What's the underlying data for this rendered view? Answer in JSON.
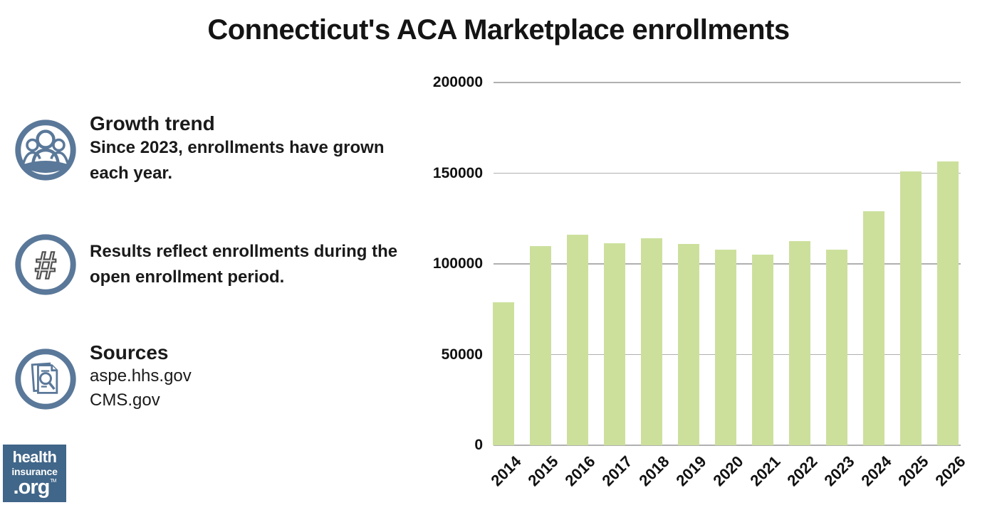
{
  "title": "Connecticut's ACA Marketplace enrollments",
  "sections": [
    {
      "icon": "people-icon",
      "heading": "Growth trend",
      "line1": "Since 2023, enrollments have grown",
      "line2": "each year."
    },
    {
      "icon": "hash-icon",
      "heading": "",
      "line1": "Results reflect enrollments during the",
      "line2": "open enrollment period."
    },
    {
      "icon": "documents-search-icon",
      "heading": "Sources",
      "line1": "aspe.hhs.gov",
      "line2": "CMS.gov"
    }
  ],
  "logo": {
    "line1": "health",
    "line2": "insurance",
    "line3": ".org",
    "trademark": "TM"
  },
  "colors": {
    "bar": "#cce09c",
    "gridline": "#b0b0b0",
    "icon_blue": "#5a7899",
    "logo_background": "#406689",
    "text": "#1a1a1a"
  },
  "chart_data": {
    "type": "bar",
    "title": "Connecticut's ACA Marketplace enrollments",
    "categories": [
      "2014",
      "2015",
      "2016",
      "2017",
      "2018",
      "2019",
      "2020",
      "2021",
      "2022",
      "2023",
      "2024",
      "2025",
      "2026"
    ],
    "values": [
      79000,
      110000,
      116000,
      111500,
      114000,
      111000,
      108000,
      105000,
      112500,
      108000,
      129000,
      151000,
      156500
    ],
    "xlabel": "",
    "ylabel": "",
    "ylim": [
      0,
      200000
    ],
    "yticks": [
      0,
      50000,
      100000,
      150000,
      200000
    ],
    "ytick_labels": [
      "0",
      "50000",
      "100000",
      "150000",
      "200000"
    ],
    "grid": true,
    "legend": false,
    "bar_color": "#cce09c",
    "gridline_color": "#b0b0b0"
  }
}
